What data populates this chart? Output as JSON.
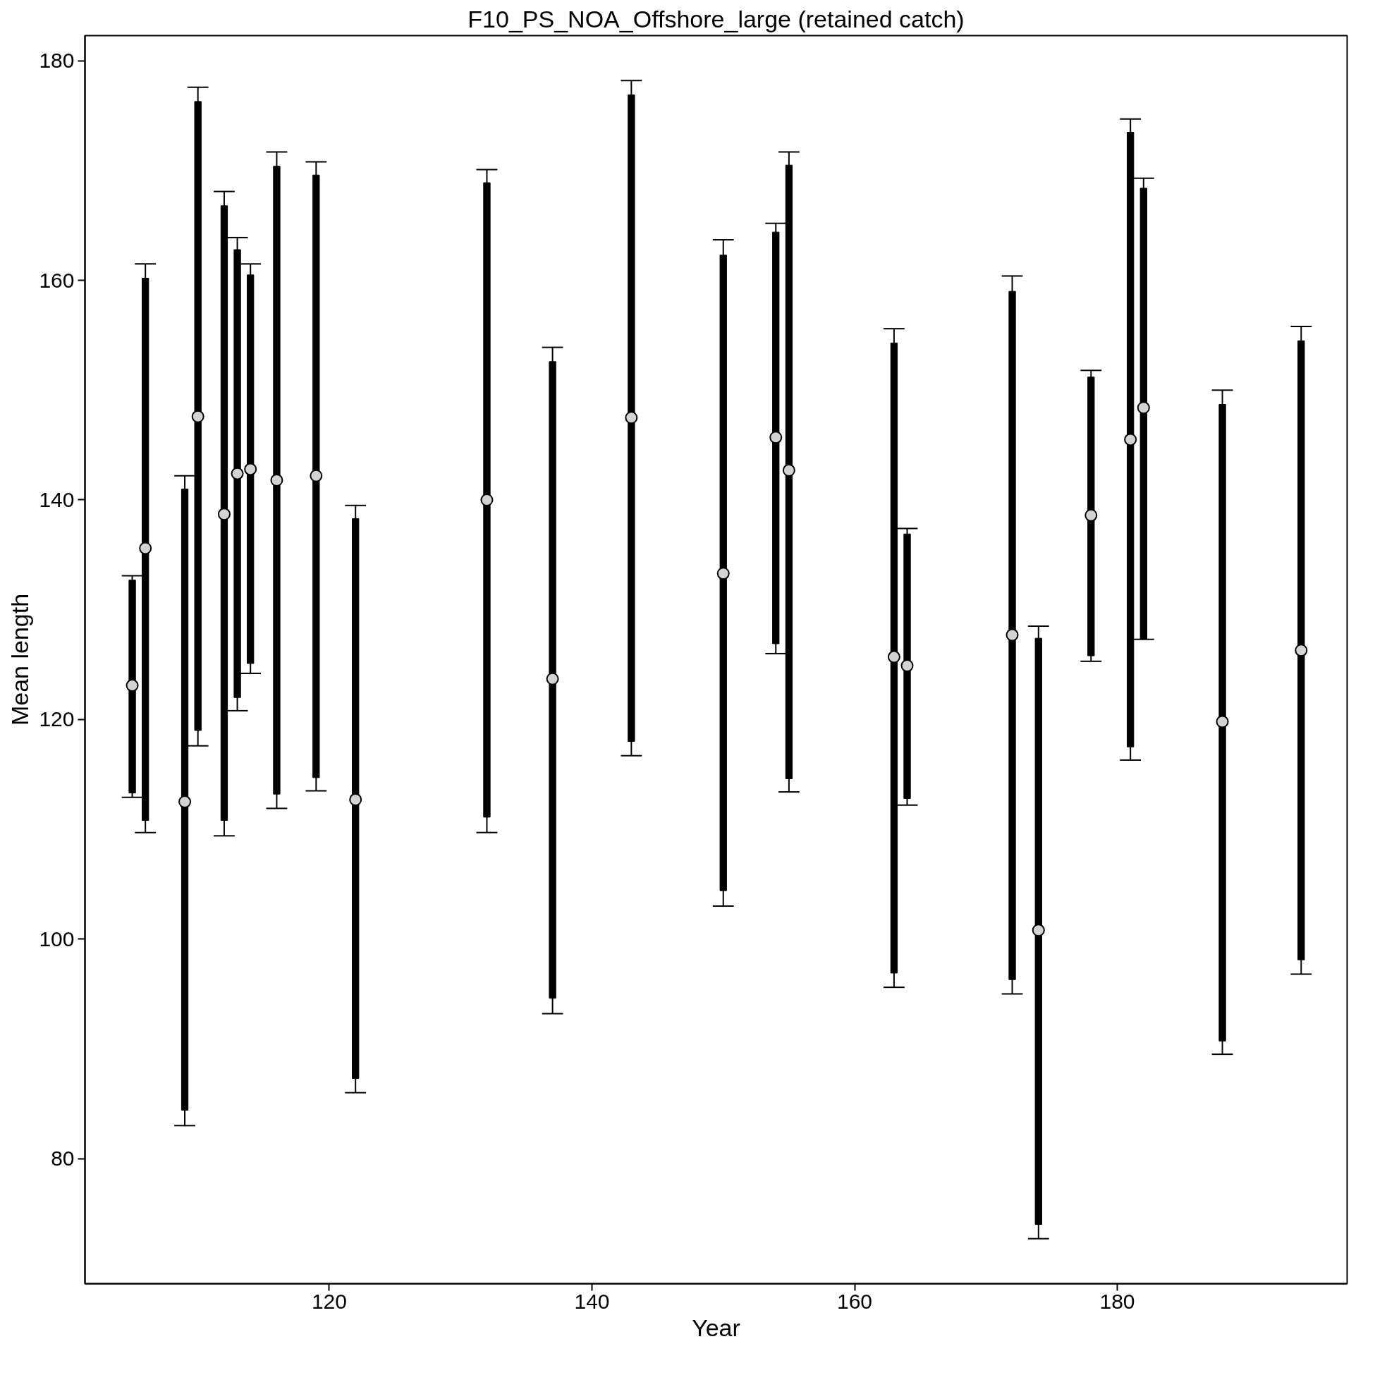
{
  "chart_data": {
    "type": "scatter",
    "title": "F10_PS_NOA_Offshore_large (retained catch)",
    "xlabel": "Year",
    "ylabel": "Mean length",
    "x": [
      105,
      106,
      109,
      110,
      112,
      113,
      114,
      116,
      119,
      122,
      132,
      137,
      143,
      150,
      154,
      155,
      163,
      164,
      172,
      174,
      178,
      181,
      182,
      188,
      194
    ],
    "xlim": [
      101.4,
      197.5
    ],
    "ylim": [
      68.6,
      182.3
    ],
    "xticks": [
      120,
      140,
      160,
      180
    ],
    "yticks": [
      80,
      100,
      120,
      140,
      160,
      180
    ],
    "grid": false,
    "marker": "circle",
    "series": [
      {
        "type": "bar",
        "color": "#000000",
        "base": [
          113.3,
          110.8,
          84.4,
          119.0,
          110.8,
          122.0,
          125.1,
          113.2,
          114.7,
          87.3,
          111.1,
          94.6,
          118.0,
          104.4,
          126.9,
          114.6,
          96.9,
          112.8,
          96.3,
          74.0,
          125.8,
          117.5,
          127.3,
          90.7,
          98.1
        ],
        "values": [
          19.4,
          49.4,
          56.6,
          57.3,
          56.0,
          40.8,
          35.4,
          57.2,
          54.9,
          51.0,
          57.8,
          58.0,
          58.9,
          57.9,
          37.5,
          55.9,
          57.4,
          24.1,
          62.7,
          53.4,
          25.4,
          56.0,
          41.1,
          58.0,
          56.4
        ]
      },
      {
        "color": "#d3d3d3",
        "values": [
          123.1,
          135.6,
          112.5,
          147.6,
          138.7,
          142.4,
          142.8,
          141.8,
          142.2,
          112.7,
          140.0,
          123.7,
          147.5,
          133.3,
          145.7,
          142.7,
          125.7,
          124.9,
          127.7,
          100.8,
          138.6,
          145.5,
          148.4,
          119.8,
          126.3
        ],
        "errors": [
          [
            112.9,
            133.1
          ],
          [
            109.7,
            161.5
          ],
          [
            83.0,
            142.2
          ],
          [
            117.6,
            177.6
          ],
          [
            109.4,
            168.1
          ],
          [
            120.8,
            163.9
          ],
          [
            124.2,
            161.5
          ],
          [
            111.9,
            171.7
          ],
          [
            113.5,
            170.8
          ],
          [
            86.0,
            139.5
          ],
          [
            109.7,
            170.1
          ],
          [
            93.2,
            153.9
          ],
          [
            116.7,
            178.2
          ],
          [
            103.0,
            163.7
          ],
          [
            126.0,
            165.2
          ],
          [
            113.4,
            171.7
          ],
          [
            95.6,
            155.6
          ],
          [
            112.2,
            137.4
          ],
          [
            95.0,
            160.4
          ],
          [
            72.7,
            128.5
          ],
          [
            125.3,
            151.8
          ],
          [
            116.3,
            174.7
          ],
          [
            127.3,
            169.3
          ],
          [
            89.5,
            150.0
          ],
          [
            96.8,
            155.8
          ]
        ]
      }
    ]
  }
}
